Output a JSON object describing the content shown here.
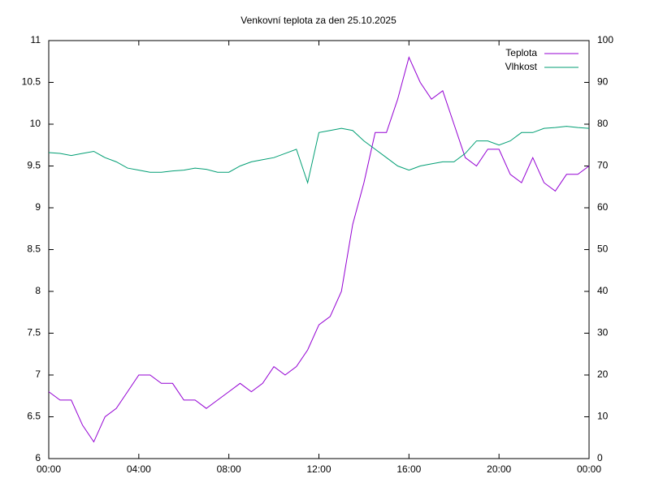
{
  "chart_data": {
    "type": "line",
    "title": "Venkovní teplota za den 25.10.2025",
    "x": [
      0,
      0.5,
      1,
      1.5,
      2,
      2.5,
      3,
      3.5,
      4,
      4.5,
      5,
      5.5,
      6,
      6.5,
      7,
      7.5,
      8,
      8.5,
      9,
      9.5,
      10,
      10.5,
      11,
      11.5,
      12,
      12.5,
      13,
      13.5,
      14,
      14.5,
      15,
      15.5,
      16,
      16.5,
      17,
      17.5,
      18,
      18.5,
      19,
      19.5,
      20,
      20.5,
      21,
      21.5,
      22,
      22.5,
      23,
      23.5,
      24
    ],
    "xlim": [
      0,
      24
    ],
    "xticks": [
      {
        "value": 0,
        "label": "00:00"
      },
      {
        "value": 4,
        "label": "04:00"
      },
      {
        "value": 8,
        "label": "08:00"
      },
      {
        "value": 12,
        "label": "12:00"
      },
      {
        "value": 16,
        "label": "16:00"
      },
      {
        "value": 20,
        "label": "20:00"
      },
      {
        "value": 24,
        "label": "00:00"
      }
    ],
    "ylim": [
      6,
      11
    ],
    "yticks": [
      6,
      6.5,
      7,
      7.5,
      8,
      8.5,
      9,
      9.5,
      10,
      10.5,
      11
    ],
    "y2lim": [
      0,
      100
    ],
    "y2ticks": [
      0,
      10,
      20,
      30,
      40,
      50,
      60,
      70,
      80,
      90,
      100
    ],
    "legend": "top-right",
    "series": [
      {
        "name": "Teplota",
        "color": "#9400d3",
        "values": [
          6.8,
          6.7,
          6.7,
          6.4,
          6.2,
          6.5,
          6.6,
          6.8,
          7.0,
          7.0,
          6.9,
          6.9,
          6.7,
          6.7,
          6.6,
          6.7,
          6.8,
          6.9,
          6.8,
          6.9,
          7.1,
          7.0,
          7.1,
          7.3,
          7.6,
          7.7,
          8.0,
          8.8,
          9.3,
          9.9,
          9.9,
          10.3,
          10.8,
          10.5,
          10.3,
          10.4,
          10.0,
          9.6,
          9.5,
          9.7,
          9.7,
          9.4,
          9.3,
          9.6,
          9.3,
          9.2,
          9.4,
          9.4,
          9.5
        ]
      },
      {
        "name": "Vlhkost",
        "color": "#009e73",
        "axis": "y2",
        "values": [
          73.2,
          73,
          72.5,
          73,
          73.5,
          72,
          71,
          69.5,
          69,
          68.5,
          68.5,
          68.8,
          69,
          69.5,
          69.2,
          68.5,
          68.5,
          70,
          71,
          71.5,
          72,
          73,
          74,
          66,
          78,
          78.5,
          79,
          78.5,
          76,
          74,
          72,
          70,
          69,
          70,
          70.5,
          71,
          71,
          73,
          76,
          76,
          75,
          76,
          78,
          78,
          79,
          79.2,
          79.5,
          79.2,
          79
        ]
      }
    ]
  }
}
